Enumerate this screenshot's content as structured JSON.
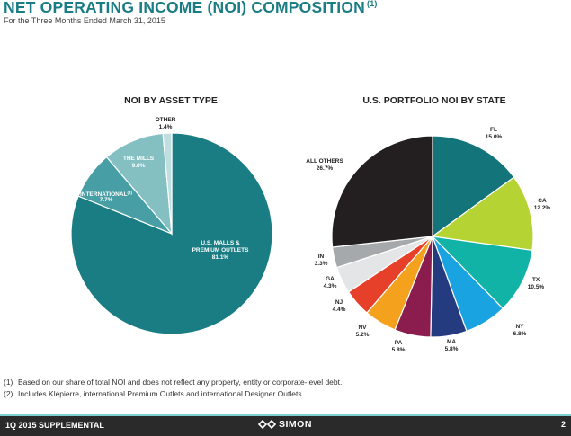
{
  "header": {
    "title": "NET OPERATING INCOME (NOI) COMPOSITION",
    "title_note": "(1)",
    "subtitle": "For the Three Months Ended March 31, 2015"
  },
  "chart_data": [
    {
      "type": "pie",
      "title": "NOI BY ASSET TYPE",
      "slices": [
        {
          "label": "U.S. MALLS & PREMIUM OUTLETS",
          "value": 81.1,
          "display": "81.1%",
          "color": "#1a7d83"
        },
        {
          "label": "INTERNATIONAL",
          "label_note": "(2)",
          "value": 7.7,
          "display": "7.7%",
          "color": "#479fa5"
        },
        {
          "label": "THE MILLS",
          "value": 9.8,
          "display": "9.8%",
          "color": "#84bfc2"
        },
        {
          "label": "OTHER",
          "value": 1.4,
          "display": "1.4%",
          "color": "#c0dddf"
        }
      ]
    },
    {
      "type": "pie",
      "title": "U.S. PORTFOLIO NOI BY STATE",
      "slices": [
        {
          "label": "FL",
          "value": 15.0,
          "display": "15.0%",
          "color": "#137479"
        },
        {
          "label": "CA",
          "value": 12.2,
          "display": "12.2%",
          "color": "#b6d334"
        },
        {
          "label": "TX",
          "value": 10.5,
          "display": "10.5%",
          "color": "#11b3a6"
        },
        {
          "label": "NY",
          "value": 6.8,
          "display": "6.8%",
          "color": "#1aa3e1"
        },
        {
          "label": "MA",
          "value": 5.8,
          "display": "5.8%",
          "color": "#253b80"
        },
        {
          "label": "PA",
          "value": 5.8,
          "display": "5.8%",
          "color": "#8a1c4e"
        },
        {
          "label": "NV",
          "value": 5.2,
          "display": "5.2%",
          "color": "#f4a21d"
        },
        {
          "label": "NJ",
          "value": 4.4,
          "display": "4.4%",
          "color": "#e6402a"
        },
        {
          "label": "GA",
          "value": 4.3,
          "display": "4.3%",
          "color": "#e3e5e6"
        },
        {
          "label": "IN",
          "value": 3.3,
          "display": "3.3%",
          "color": "#a6a9ab"
        },
        {
          "label": "ALL OTHERS",
          "value": 26.7,
          "display": "26.7%",
          "color": "#231f20"
        }
      ]
    }
  ],
  "footnotes": [
    {
      "mark": "(1)",
      "text": "Based on our share of total NOI and does not reflect any property, entity or corporate-level debt."
    },
    {
      "mark": "(2)",
      "text": "Includes Klépierre, international Premium Outlets and international Designer Outlets."
    }
  ],
  "footer": {
    "left": "1Q 2015 SUPPLEMENTAL",
    "brand": "SIMON",
    "page": "2"
  }
}
